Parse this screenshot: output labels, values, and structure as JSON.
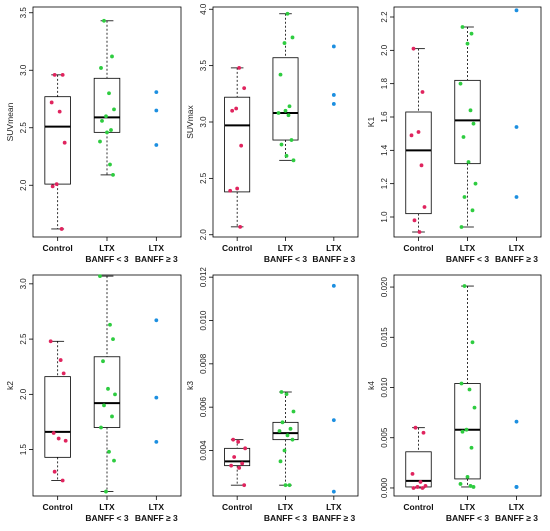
{
  "colors": {
    "control": "#e0245e",
    "ltx_lt3": "#2ecc40",
    "ltx_ge3": "#1c8fe0",
    "box": "#000000"
  },
  "chart_data": [
    {
      "type": "boxplot",
      "ylabel": "SUVmean",
      "ylim": [
        1.55,
        3.55
      ],
      "yticks": [
        "2.0",
        "2.5",
        "3.0",
        "3.5"
      ],
      "ytick_values": [
        2.0,
        2.5,
        3.0,
        3.5
      ],
      "categories": [
        [
          "Control"
        ],
        [
          "LTX",
          "BANFF < 3"
        ],
        [
          "LTX",
          "BANFF ≥ 3"
        ]
      ],
      "boxes": [
        {
          "min": 1.62,
          "q1": 2.01,
          "median": 2.51,
          "q3": 2.77,
          "max": 2.96
        },
        {
          "min": 2.09,
          "q1": 2.46,
          "median": 2.59,
          "q3": 2.93,
          "max": 3.43
        }
      ],
      "points": [
        [
          2.96,
          2.96,
          2.72,
          2.64,
          2.37,
          2.01,
          1.99,
          1.62
        ],
        [
          3.43,
          3.12,
          3.02,
          2.8,
          2.66,
          2.6,
          2.56,
          2.48,
          2.46,
          2.38,
          2.18,
          2.09
        ],
        [
          2.81,
          2.65,
          2.35
        ]
      ]
    },
    {
      "type": "boxplot",
      "ylabel": "SUVmax",
      "ylim": [
        1.98,
        4.02
      ],
      "yticks": [
        "2.0",
        "2.5",
        "3.0",
        "3.5",
        "4.0"
      ],
      "ytick_values": [
        2.0,
        2.5,
        3.0,
        3.5,
        4.0
      ],
      "categories": [
        [
          "Control"
        ],
        [
          "LTX",
          "BANFF < 3"
        ],
        [
          "LTX",
          "BANFF ≥ 3"
        ]
      ],
      "boxes": [
        {
          "min": 2.07,
          "q1": 2.38,
          "median": 2.97,
          "q3": 3.22,
          "max": 3.48
        },
        {
          "min": 2.66,
          "q1": 2.84,
          "median": 3.08,
          "q3": 3.57,
          "max": 3.96
        }
      ],
      "points": [
        [
          3.48,
          3.3,
          3.12,
          3.1,
          2.79,
          2.41,
          2.39,
          2.07
        ],
        [
          3.96,
          3.75,
          3.7,
          3.42,
          3.14,
          3.1,
          3.08,
          3.06,
          2.84,
          2.8,
          2.7,
          2.66
        ],
        [
          3.67,
          3.24,
          3.16
        ]
      ]
    },
    {
      "type": "boxplot",
      "ylabel": "K1",
      "ylim": [
        0.88,
        2.26
      ],
      "yticks": [
        "1.0",
        "1.2",
        "1.4",
        "1.6",
        "1.8",
        "2.0",
        "2.2"
      ],
      "ytick_values": [
        1.0,
        1.2,
        1.4,
        1.6,
        1.8,
        2.0,
        2.2
      ],
      "categories": [
        [
          "Control"
        ],
        [
          "LTX",
          "BANFF < 3"
        ],
        [
          "LTX",
          "BANFF ≥ 3"
        ]
      ],
      "boxes": [
        {
          "min": 0.91,
          "q1": 1.02,
          "median": 1.4,
          "q3": 1.63,
          "max": 2.01
        },
        {
          "min": 0.94,
          "q1": 1.32,
          "median": 1.58,
          "q3": 1.82,
          "max": 2.14
        }
      ],
      "points": [
        [
          2.01,
          1.75,
          1.51,
          1.49,
          1.31,
          1.06,
          0.98,
          0.91
        ],
        [
          2.14,
          2.1,
          2.04,
          1.8,
          1.64,
          1.56,
          1.48,
          1.33,
          1.2,
          1.12,
          1.04,
          0.94
        ],
        [
          2.24,
          1.54,
          1.12
        ]
      ]
    },
    {
      "type": "boxplot",
      "ylabel": "k2",
      "ylim": [
        1.08,
        3.08
      ],
      "yticks": [
        "1.5",
        "2.0",
        "2.5",
        "3.0"
      ],
      "ytick_values": [
        1.5,
        2.0,
        2.5,
        3.0
      ],
      "categories": [
        [
          "Control"
        ],
        [
          "LTX",
          "BANFF < 3"
        ],
        [
          "LTX",
          "BANFF ≥ 3"
        ]
      ],
      "boxes": [
        {
          "min": 1.22,
          "q1": 1.43,
          "median": 1.66,
          "q3": 2.16,
          "max": 2.48
        },
        {
          "min": 1.12,
          "q1": 1.7,
          "median": 1.92,
          "q3": 2.34,
          "max": 3.07
        }
      ],
      "points": [
        [
          2.48,
          2.31,
          2.19,
          1.65,
          1.6,
          1.58,
          1.3,
          1.22
        ],
        [
          3.07,
          2.63,
          2.5,
          2.3,
          2.05,
          2.0,
          1.9,
          1.8,
          1.7,
          1.48,
          1.4,
          1.12
        ],
        [
          2.67,
          1.97,
          1.57
        ]
      ]
    },
    {
      "type": "boxplot",
      "ylabel": "k3",
      "ylim": [
        0.0019,
        0.0121
      ],
      "yticks": [
        "0.004",
        "0.006",
        "0.008",
        "0.010",
        "0.012"
      ],
      "ytick_values": [
        0.004,
        0.006,
        0.008,
        0.01,
        0.012
      ],
      "categories": [
        [
          "Control"
        ],
        [
          "LTX",
          "BANFF < 3"
        ],
        [
          "LTX",
          "BANFF ≥ 3"
        ]
      ],
      "boxes": [
        {
          "min": 0.0024,
          "q1": 0.0033,
          "median": 0.0035,
          "q3": 0.0041,
          "max": 0.0045
        },
        {
          "min": 0.0024,
          "q1": 0.0045,
          "median": 0.0048,
          "q3": 0.0053,
          "max": 0.0067
        }
      ],
      "points": [
        [
          0.0045,
          0.0044,
          0.0041,
          0.0037,
          0.0034,
          0.0033,
          0.0032,
          0.0024
        ],
        [
          0.0067,
          0.0066,
          0.0058,
          0.0053,
          0.005,
          0.0049,
          0.0047,
          0.0045,
          0.004,
          0.0035,
          0.0024,
          0.0024
        ],
        [
          0.0116,
          0.0054,
          0.0021
        ]
      ]
    },
    {
      "type": "boxplot",
      "ylabel": "k4",
      "ylim": [
        -0.0008,
        0.0212
      ],
      "yticks": [
        "0.000",
        "0.005",
        "0.010",
        "0.015",
        "0.020"
      ],
      "ytick_values": [
        0.0,
        0.005,
        0.01,
        0.015,
        0.02
      ],
      "categories": [
        [
          "Control"
        ],
        [
          "LTX",
          "BANFF < 3"
        ],
        [
          "LTX",
          "BANFF ≥ 3"
        ]
      ],
      "boxes": [
        {
          "min": 0.0,
          "q1": 0.0001,
          "median": 0.0007,
          "q3": 0.0036,
          "max": 0.006
        },
        {
          "min": 0.0001,
          "q1": 0.0009,
          "median": 0.0058,
          "q3": 0.0104,
          "max": 0.0201
        }
      ],
      "points": [
        [
          0.006,
          0.0055,
          0.0014,
          0.0006,
          0.0002,
          0.0001,
          0.0,
          0.0
        ],
        [
          0.0201,
          0.0145,
          0.0104,
          0.0098,
          0.008,
          0.0058,
          0.0056,
          0.004,
          0.0011,
          0.0004,
          0.0002,
          0.0001
        ],
        [
          0.0066,
          0.0001,
          0.0001
        ]
      ]
    }
  ]
}
